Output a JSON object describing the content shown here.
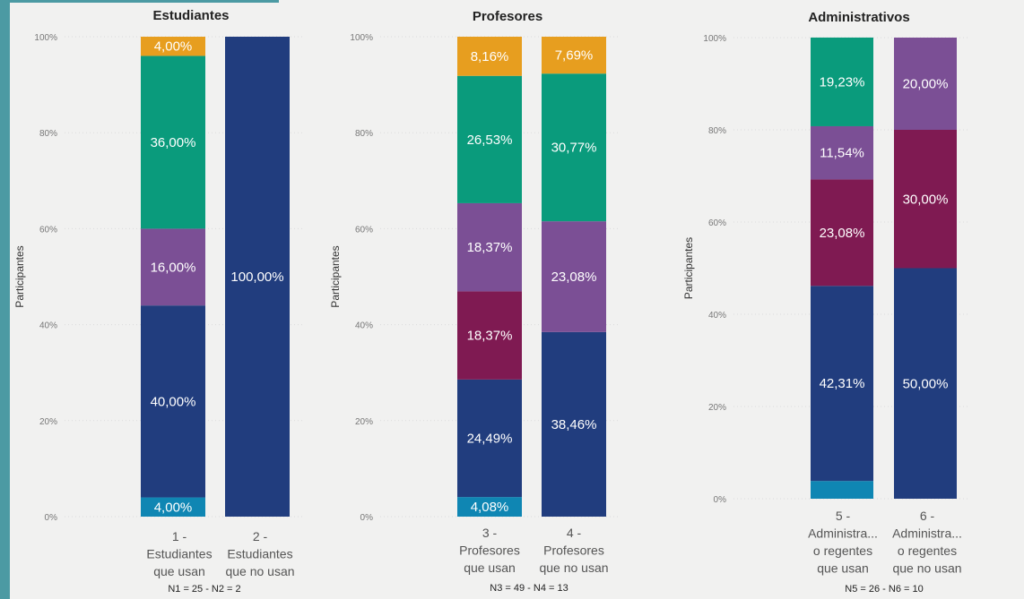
{
  "colors": {
    "teal_blue": "#0f86b3",
    "navy": "#213d7e",
    "maroon": "#7f1a52",
    "purple": "#7b4f95",
    "green": "#0a9b7c",
    "orange": "#e79e1f"
  },
  "chart_data": [
    {
      "type": "bar",
      "stacked": true,
      "normalized": true,
      "title": "Estudiantes",
      "ylabel": "Participantes",
      "ylim": [
        0,
        1
      ],
      "yticks": [
        "0%",
        "20%",
        "40%",
        "60%",
        "80%",
        "100%"
      ],
      "categories": [
        [
          "1 -",
          "Estudiantes",
          "que usan"
        ],
        [
          "2 -",
          "Estudiantes",
          "que no usan"
        ]
      ],
      "n_label": "N1 = 25 - N2 = 2",
      "grid": true,
      "series": [
        {
          "color": "#0f86b3",
          "values": [
            0.04,
            0
          ],
          "labels": [
            "4,00%",
            ""
          ]
        },
        {
          "color": "#213d7e",
          "values": [
            0.4,
            1.0
          ],
          "labels": [
            "40,00%",
            "100,00%"
          ]
        },
        {
          "color": "#7b4f95",
          "values": [
            0.16,
            0
          ],
          "labels": [
            "16,00%",
            ""
          ]
        },
        {
          "color": "#0a9b7c",
          "values": [
            0.36,
            0
          ],
          "labels": [
            "36,00%",
            ""
          ]
        },
        {
          "color": "#e79e1f",
          "values": [
            0.04,
            0
          ],
          "labels": [
            "4,00%",
            ""
          ]
        }
      ]
    },
    {
      "type": "bar",
      "stacked": true,
      "normalized": true,
      "title": "Profesores",
      "ylabel": "Participantes",
      "ylim": [
        0,
        1
      ],
      "yticks": [
        "0%",
        "20%",
        "40%",
        "60%",
        "80%",
        "100%"
      ],
      "categories": [
        [
          "3 -",
          "Profesores",
          "que usan"
        ],
        [
          "4 -",
          "Profesores",
          "que no usan"
        ]
      ],
      "n_label": "N3 = 49 - N4 = 13",
      "grid": true,
      "series": [
        {
          "color": "#0f86b3",
          "values": [
            0.0408,
            0
          ],
          "labels": [
            "4,08%",
            ""
          ]
        },
        {
          "color": "#213d7e",
          "values": [
            0.2449,
            0.3846
          ],
          "labels": [
            "24,49%",
            "38,46%"
          ]
        },
        {
          "color": "#7f1a52",
          "values": [
            0.1837,
            0
          ],
          "labels": [
            "18,37%",
            ""
          ]
        },
        {
          "color": "#7b4f95",
          "values": [
            0.1837,
            0.2308
          ],
          "labels": [
            "18,37%",
            "23,08%"
          ]
        },
        {
          "color": "#0a9b7c",
          "values": [
            0.2653,
            0.3077
          ],
          "labels": [
            "26,53%",
            "30,77%"
          ]
        },
        {
          "color": "#e79e1f",
          "values": [
            0.0816,
            0.0769
          ],
          "labels": [
            "8,16%",
            "7,69%"
          ]
        }
      ]
    },
    {
      "type": "bar",
      "stacked": true,
      "normalized": true,
      "title": "Administrativos",
      "ylabel": "Participantes",
      "ylim": [
        0,
        1
      ],
      "yticks": [
        "0%",
        "20%",
        "40%",
        "60%",
        "80%",
        "100%"
      ],
      "categories": [
        [
          "5 -",
          "Administra...",
          "o regentes",
          "que usan"
        ],
        [
          "6 -",
          "Administra...",
          "o regentes",
          "que no usan"
        ]
      ],
      "n_label": "N5 = 26 - N6 = 10",
      "grid": true,
      "series": [
        {
          "color": "#0f86b3",
          "values": [
            0.0385,
            0
          ],
          "labels": [
            "",
            ""
          ]
        },
        {
          "color": "#213d7e",
          "values": [
            0.4231,
            0.5
          ],
          "labels": [
            "42,31%",
            "50,00%"
          ]
        },
        {
          "color": "#7f1a52",
          "values": [
            0.2308,
            0.3
          ],
          "labels": [
            "23,08%",
            "30,00%"
          ]
        },
        {
          "color": "#7b4f95",
          "values": [
            0.1154,
            0.2
          ],
          "labels": [
            "11,54%",
            "20,00%"
          ]
        },
        {
          "color": "#0a9b7c",
          "values": [
            0.1923,
            0
          ],
          "labels": [
            "19,23%",
            ""
          ]
        }
      ]
    }
  ]
}
